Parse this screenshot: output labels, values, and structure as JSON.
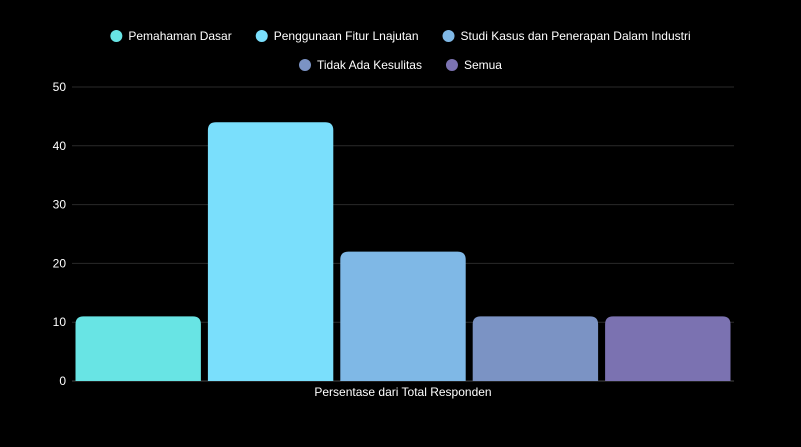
{
  "chart_data": {
    "type": "bar",
    "categories": [
      "Persentase dari Total Responden"
    ],
    "series": [
      {
        "name": "Pemahaman Dasar",
        "values": [
          11
        ],
        "color": "#68E4E4"
      },
      {
        "name": "Penggunaan Fitur Lnajutan",
        "values": [
          44
        ],
        "color": "#7ADFFC"
      },
      {
        "name": "Studi Kasus dan Penerapan Dalam Industri",
        "values": [
          22
        ],
        "color": "#7FB8E6"
      },
      {
        "name": "Tidak Ada Kesulitas",
        "values": [
          11
        ],
        "color": "#7B93C4"
      },
      {
        "name": "Semua",
        "values": [
          11
        ],
        "color": "#7B72B1"
      }
    ],
    "xlabel": "",
    "ylabel": "",
    "ylim": [
      0,
      50
    ],
    "yticks": [
      0,
      10,
      20,
      30,
      40,
      50
    ],
    "grid": true,
    "legend_position": "top",
    "background": "#000000",
    "text_color": "#ffffff",
    "grid_color": "#2a2a2a"
  }
}
